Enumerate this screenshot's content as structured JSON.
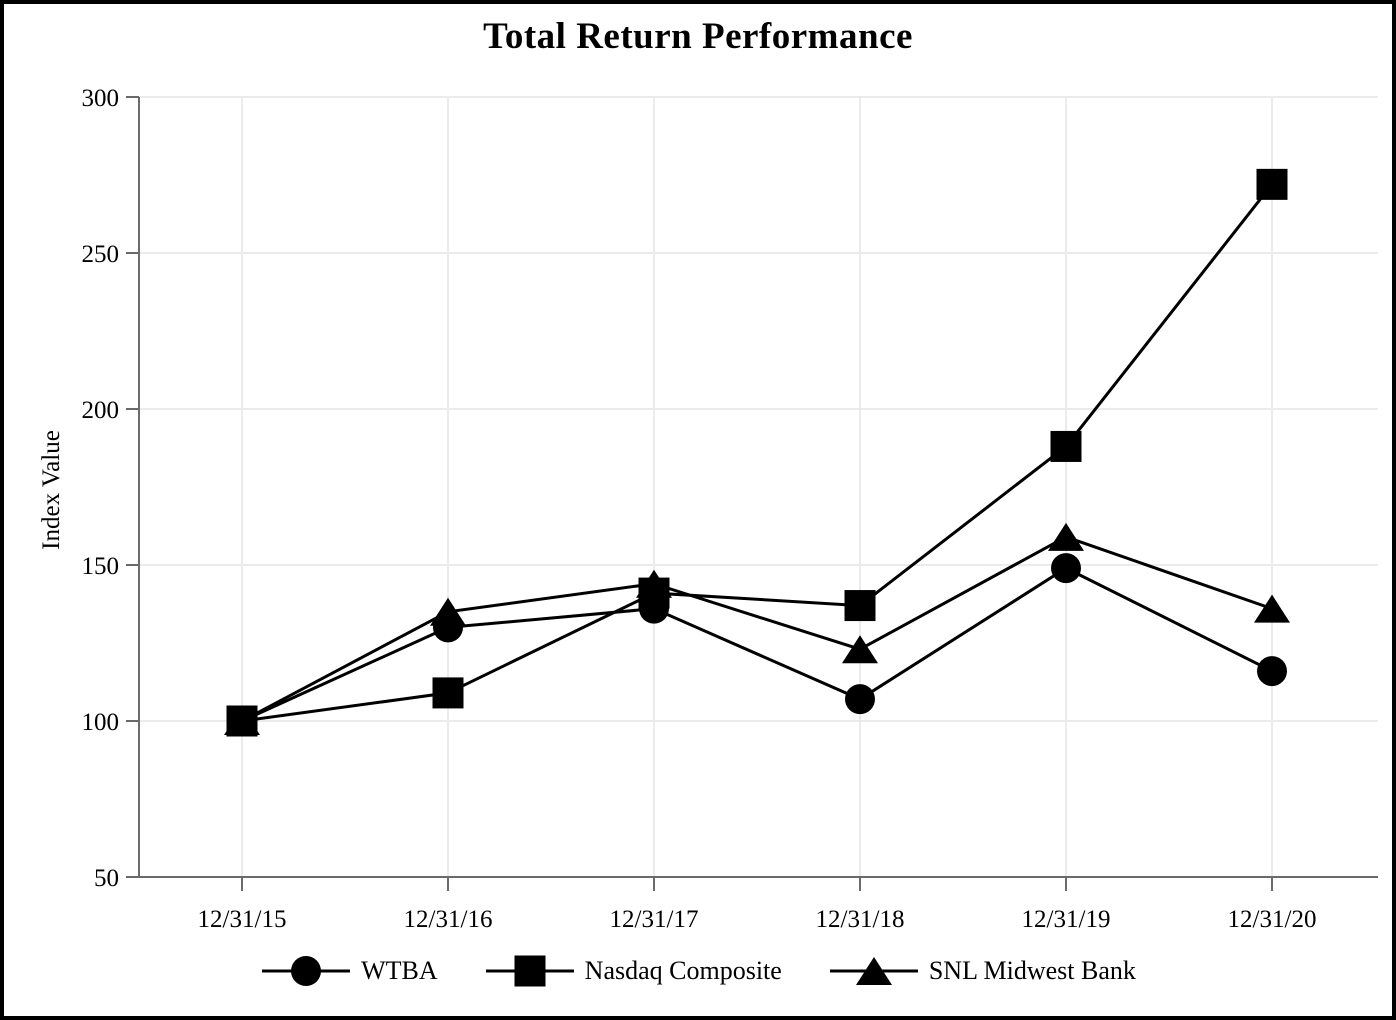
{
  "title": "Total Return Performance",
  "chart_data": {
    "type": "line",
    "title": "Total Return Performance",
    "xlabel": "",
    "ylabel": "Index Value",
    "categories": [
      "12/31/15",
      "12/31/16",
      "12/31/17",
      "12/31/18",
      "12/31/19",
      "12/31/20"
    ],
    "series": [
      {
        "name": "WTBA",
        "marker": "circle",
        "color": "#000000",
        "values": [
          100,
          130,
          136,
          107,
          149,
          116
        ]
      },
      {
        "name": "Nasdaq Composite",
        "marker": "square",
        "color": "#000000",
        "values": [
          100,
          109,
          141,
          137,
          188,
          272
        ]
      },
      {
        "name": "SNL Midwest Bank",
        "marker": "triangle",
        "color": "#000000",
        "values": [
          100,
          135,
          144,
          123,
          159,
          136
        ]
      }
    ],
    "ylim": [
      50,
      300
    ],
    "yticks": [
      50,
      100,
      150,
      200,
      250,
      300
    ],
    "grid": true,
    "legend_position": "bottom"
  },
  "colors": {
    "line": "#000000",
    "axis": "#6b6b6b",
    "grid": "#ebebeb",
    "text": "#000000",
    "background": "#ffffff",
    "frame": "#000000"
  }
}
